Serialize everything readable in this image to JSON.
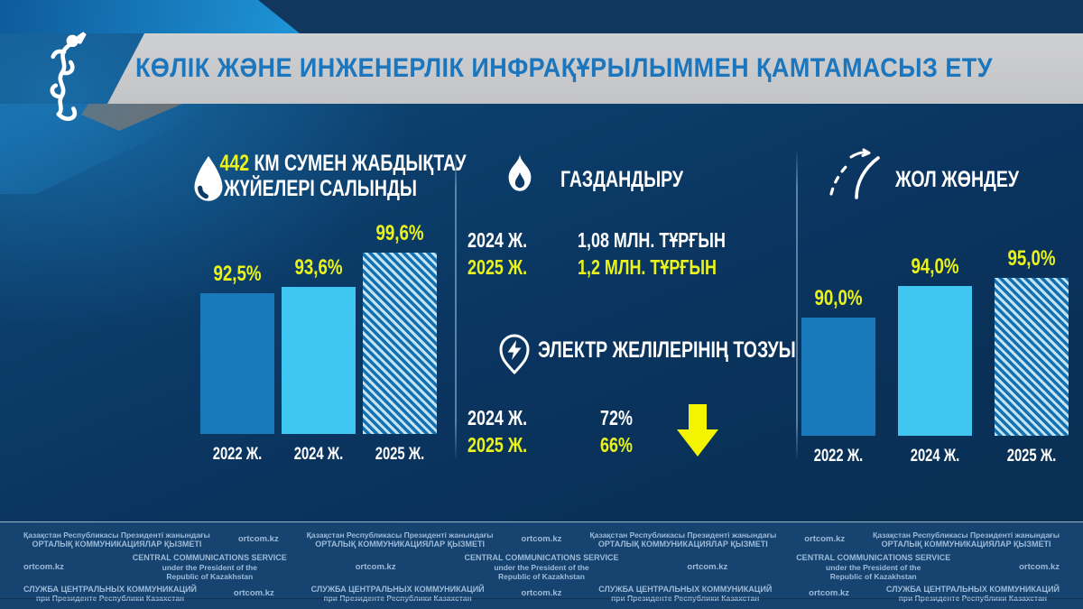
{
  "header": {
    "title": "КӨЛІК ЖӘНЕ ИНЖЕНЕРЛІК ИНФРАҚҰРЫЛЫММЕН ҚАМТАМАСЫЗ ЕТУ"
  },
  "sections": {
    "water": {
      "icon": "water-drop-icon",
      "heading_value": "442",
      "heading_line1_rest": " КМ СУМЕН ЖАБДЫҚТАУ",
      "heading_line2": "ЖҮЙЕЛЕРІ САЛЫНДЫ"
    },
    "gas": {
      "icon": "flame-icon",
      "heading": "ГАЗДАНДЫРУ",
      "rows": [
        {
          "year": "2024 Ж.",
          "value": "1,08 МЛН. ТҰРҒЫН",
          "highlight": false
        },
        {
          "year": "2025 Ж.",
          "value": "1,2 МЛН. ТҰРҒЫН",
          "highlight": true
        }
      ]
    },
    "power": {
      "icon": "electricity-pin-icon",
      "heading": "ЭЛЕКТР ЖЕЛІЛЕРІНІҢ ТОЗУЫ",
      "rows": [
        {
          "year": "2024 Ж.",
          "value": "72%",
          "highlight": false
        },
        {
          "year": "2025 Ж.",
          "value": "66%",
          "highlight": true
        }
      ],
      "trend": "down-arrow-icon"
    },
    "road": {
      "icon": "road-icon",
      "heading": "ЖОЛ ЖӨНДЕУ"
    }
  },
  "chart_data": [
    {
      "id": "water_chart",
      "type": "bar",
      "title": "442 КМ СУМЕН ЖАБДЫҚТАУ ЖҮЙЕЛЕРІ САЛЫНДЫ",
      "categories": [
        "2022 Ж.",
        "2024 Ж.",
        "2025 Ж."
      ],
      "values": [
        92.5,
        93.6,
        99.6
      ],
      "value_labels": [
        "92,5%",
        "93,6%",
        "99,6%"
      ],
      "bar_styles": [
        "solid-blue",
        "solid-cyan",
        "hatched"
      ],
      "ylabel": "",
      "xlabel": "",
      "ylim": [
        68,
        101
      ],
      "grid": false,
      "legend": "none"
    },
    {
      "id": "road_chart",
      "type": "bar",
      "title": "ЖОЛ ЖӨНДЕУ",
      "categories": [
        "2022 Ж.",
        "2024 Ж.",
        "2025 Ж."
      ],
      "values": [
        90.0,
        94.0,
        95.0
      ],
      "value_labels": [
        "90,0%",
        "94,0%",
        "95,0%"
      ],
      "bar_styles": [
        "solid-blue",
        "solid-cyan",
        "hatched"
      ],
      "ylabel": "",
      "xlabel": "",
      "ylim": [
        75,
        99
      ],
      "grid": false,
      "legend": "none"
    },
    {
      "id": "gas_stats",
      "type": "table",
      "title": "ГАЗДАНДЫРУ",
      "rows": [
        [
          "2024 Ж.",
          "1,08 МЛН. ТҰРҒЫН"
        ],
        [
          "2025 Ж.",
          "1,2 МЛН. ТҰРҒЫН"
        ]
      ]
    },
    {
      "id": "power_grid_wear_stats",
      "type": "table",
      "title": "ЭЛЕКТР ЖЕЛІЛЕРІНІҢ ТОЗУЫ",
      "rows": [
        [
          "2024 Ж.",
          "72%"
        ],
        [
          "2025 Ж.",
          "66%"
        ]
      ],
      "trend": "decreasing"
    }
  ],
  "footer": {
    "kk_line1": "Қазақстан Республикасы Президенті жанындағы",
    "kk_line2": "ОРТАЛЫҚ КОММУНИКАЦИЯЛАР ҚЫЗМЕТІ",
    "url": "ortcom.kz",
    "en_line1": "CENTRAL COMMUNICATIONS SERVICE",
    "en_line2": "under the President of the",
    "en_line3": "Republic of Kazakhstan",
    "ru_line1": "СЛУЖБА ЦЕНТРАЛЬНЫХ КОММУНИКАЦИЙ",
    "ru_line2": "при Президенте Республики Казахстан"
  },
  "colors": {
    "accent_yellow": "#EAF31A",
    "title_blue": "#1B76BE",
    "bar_blue": "#1979BA",
    "bar_cyan": "#3FC7F1",
    "hatch_light": "#C2E4F4",
    "hatch_dark": "#1470AE",
    "banner_gray": "#C9CACC",
    "footer_bg": "#164370",
    "footer_text": "#9DBBD8",
    "background_dark_blue": "#0A3560",
    "background_bright_blue": "#1E96D8"
  }
}
